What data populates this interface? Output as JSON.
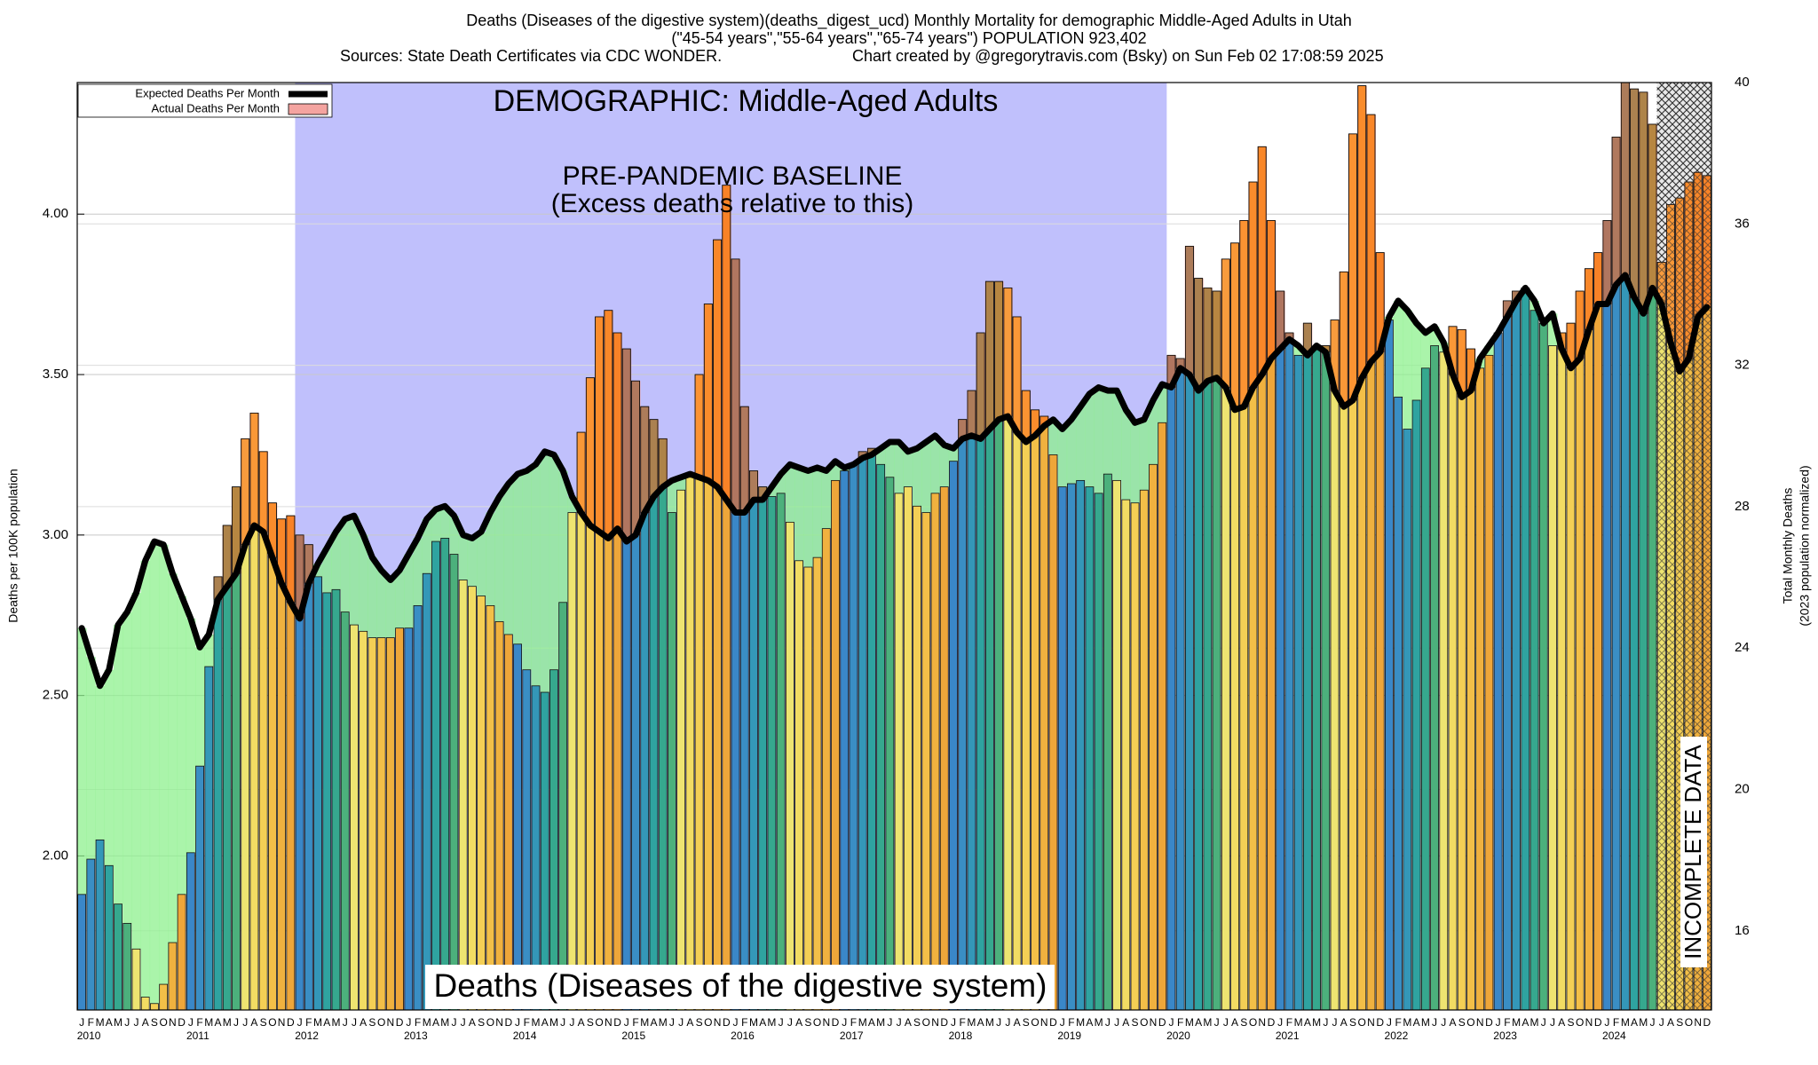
{
  "chart_data": {
    "type": "bar",
    "title": "Deaths (Diseases of the digestive system)(deaths_digest_ucd) Monthly Mortality for demographic Middle-Aged Adults in Utah",
    "subtitle": "(\"45-54 years\",\"55-64 years\",\"65-74 years\") POPULATION 923,402",
    "sources": "Sources: State Death Certificates via CDC WONDER.",
    "credit": "Chart created by @gregorytravis.com (Bsky) on Sun Feb 02 17:08:59 2025",
    "demographic_label": "DEMOGRAPHIC: Middle-Aged Adults",
    "baseline_label": "PRE-PANDEMIC BASELINE",
    "baseline_sublabel": "(Excess deaths relative to this)",
    "cause_label": "Deaths (Diseases of the digestive system)",
    "incomplete_label": "INCOMPLETE DATA",
    "ylabel": "Deaths per 100K population",
    "y2label": "Total Monthly Deaths",
    "y2sublabel": "(2023 population normalized)",
    "years": [
      2010,
      2011,
      2012,
      2013,
      2014,
      2015,
      2016,
      2017,
      2018,
      2019,
      2020,
      2021,
      2022,
      2023,
      2024
    ],
    "months": [
      "J",
      "F",
      "M",
      "A",
      "M",
      "J",
      "J",
      "A",
      "S",
      "O",
      "N",
      "D"
    ],
    "month_colors": [
      "#3a87c8",
      "#3a8ec4",
      "#3497b8",
      "#2fa3a0",
      "#36a88e",
      "#4cb07c",
      "#eee471",
      "#f2dc63",
      "#f4cf55",
      "#f3bf48",
      "#f0b13f",
      "#eea63a"
    ],
    "baseline": [
      "2012-01",
      "2019-12"
    ],
    "baseline_color": "#c0c0fc",
    "incomplete_from": "2024-07",
    "excess_color": "#ff6a1a",
    "deficit_color": "#8ef08e",
    "ylim": [
      1.52,
      4.41
    ],
    "yticks": [
      {
        "value": 2,
        "label": "2.00"
      },
      {
        "value": 2.5,
        "label": "2.50"
      },
      {
        "value": 3,
        "label": "3.00"
      },
      {
        "value": 3.5,
        "label": "3.50"
      },
      {
        "value": 4,
        "label": "4.00"
      }
    ],
    "y2lim": [
      13.76,
      40
    ],
    "y2ticks": [
      16,
      20,
      24,
      28,
      32,
      36,
      40
    ],
    "grid": true,
    "legend": "upper left",
    "series": [
      {
        "name": "Expected Deaths Per Month",
        "color": "#000000",
        "values": [
          2.71,
          2.62,
          2.53,
          2.58,
          2.72,
          2.76,
          2.82,
          2.92,
          2.98,
          2.97,
          2.88,
          2.81,
          2.74,
          2.65,
          2.69,
          2.8,
          2.84,
          2.88,
          2.97,
          3.03,
          3.01,
          2.93,
          2.85,
          2.79,
          2.74,
          2.85,
          2.91,
          2.96,
          3.01,
          3.05,
          3.06,
          3.0,
          2.93,
          2.89,
          2.86,
          2.89,
          2.94,
          2.99,
          3.05,
          3.08,
          3.09,
          3.06,
          3.0,
          2.99,
          3.01,
          3.07,
          3.12,
          3.16,
          3.19,
          3.2,
          3.22,
          3.26,
          3.25,
          3.2,
          3.12,
          3.07,
          3.03,
          3.01,
          2.99,
          3.02,
          2.98,
          3.0,
          3.07,
          3.12,
          3.15,
          3.17,
          3.18,
          3.19,
          3.18,
          3.17,
          3.15,
          3.11,
          3.07,
          3.07,
          3.11,
          3.11,
          3.15,
          3.19,
          3.22,
          3.21,
          3.2,
          3.21,
          3.2,
          3.23,
          3.21,
          3.22,
          3.24,
          3.25,
          3.27,
          3.29,
          3.29,
          3.26,
          3.27,
          3.29,
          3.31,
          3.28,
          3.27,
          3.3,
          3.31,
          3.3,
          3.33,
          3.36,
          3.37,
          3.32,
          3.29,
          3.31,
          3.34,
          3.36,
          3.33,
          3.36,
          3.4,
          3.44,
          3.46,
          3.45,
          3.45,
          3.39,
          3.35,
          3.36,
          3.42,
          3.47,
          3.46,
          3.52,
          3.5,
          3.45,
          3.48,
          3.49,
          3.46,
          3.39,
          3.4,
          3.46,
          3.5,
          3.55,
          3.58,
          3.61,
          3.59,
          3.56,
          3.59,
          3.57,
          3.45,
          3.4,
          3.42,
          3.49,
          3.54,
          3.57,
          3.68,
          3.73,
          3.7,
          3.66,
          3.63,
          3.65,
          3.6,
          3.5,
          3.43,
          3.45,
          3.55,
          3.59,
          3.63,
          3.68,
          3.73,
          3.77,
          3.73,
          3.66,
          3.69,
          3.58,
          3.52,
          3.55,
          3.64,
          3.72,
          3.72,
          3.78,
          3.81,
          3.74,
          3.69,
          3.77,
          3.72,
          3.6,
          3.51,
          3.55,
          3.68,
          3.71
        ]
      },
      {
        "name": "Actual Deaths Per Month",
        "color": "#f4a4a0",
        "values": [
          1.88,
          1.99,
          2.05,
          1.97,
          1.85,
          1.79,
          1.71,
          1.56,
          1.54,
          1.6,
          1.73,
          1.88,
          2.01,
          2.28,
          2.59,
          2.87,
          3.03,
          3.15,
          3.3,
          3.38,
          3.26,
          3.1,
          3.05,
          3.06,
          3.0,
          2.97,
          2.87,
          2.82,
          2.83,
          2.76,
          2.72,
          2.7,
          2.68,
          2.68,
          2.68,
          2.71,
          2.71,
          2.78,
          2.88,
          2.98,
          2.99,
          2.94,
          2.86,
          2.84,
          2.81,
          2.78,
          2.73,
          2.69,
          2.66,
          2.58,
          2.53,
          2.51,
          2.58,
          2.79,
          3.07,
          3.32,
          3.49,
          3.68,
          3.7,
          3.63,
          3.58,
          3.48,
          3.4,
          3.36,
          3.3,
          3.07,
          3.14,
          3.18,
          3.5,
          3.72,
          3.92,
          4.09,
          3.86,
          3.4,
          3.2,
          3.15,
          3.12,
          3.13,
          3.04,
          2.92,
          2.9,
          2.93,
          3.02,
          3.17,
          3.2,
          3.22,
          3.26,
          3.27,
          3.22,
          3.18,
          3.13,
          3.15,
          3.09,
          3.07,
          3.13,
          3.15,
          3.23,
          3.36,
          3.45,
          3.63,
          3.79,
          3.79,
          3.77,
          3.68,
          3.45,
          3.39,
          3.37,
          3.25,
          3.15,
          3.16,
          3.17,
          3.15,
          3.13,
          3.19,
          3.17,
          3.11,
          3.1,
          3.14,
          3.22,
          3.35,
          3.56,
          3.55,
          3.9,
          3.8,
          3.77,
          3.76,
          3.86,
          3.91,
          3.98,
          4.1,
          4.21,
          3.98,
          3.76,
          3.63,
          3.56,
          3.66,
          3.58,
          3.59,
          3.67,
          3.82,
          4.25,
          4.4,
          4.31,
          3.88,
          3.67,
          3.43,
          3.33,
          3.42,
          3.52,
          3.59,
          3.57,
          3.65,
          3.64,
          3.58,
          3.52,
          3.56,
          3.63,
          3.73,
          3.76,
          3.77,
          3.7,
          3.66,
          3.59,
          3.63,
          3.66,
          3.76,
          3.83,
          3.88,
          3.98,
          4.24,
          4.41,
          4.39,
          4.38,
          4.28,
          3.85,
          4.03,
          4.05,
          4.1,
          4.13,
          4.12
        ]
      }
    ]
  }
}
